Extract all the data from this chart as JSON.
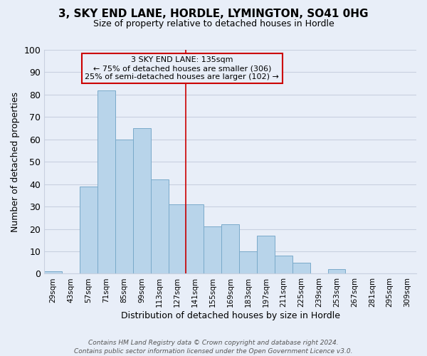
{
  "title": "3, SKY END LANE, HORDLE, LYMINGTON, SO41 0HG",
  "subtitle": "Size of property relative to detached houses in Hordle",
  "xlabel": "Distribution of detached houses by size in Hordle",
  "ylabel": "Number of detached properties",
  "bar_color": "#b8d4ea",
  "bar_edge_color": "#7aaaca",
  "background_color": "#e8eef8",
  "grid_color": "#c8d0e0",
  "bin_labels": [
    "29sqm",
    "43sqm",
    "57sqm",
    "71sqm",
    "85sqm",
    "99sqm",
    "113sqm",
    "127sqm",
    "141sqm",
    "155sqm",
    "169sqm",
    "183sqm",
    "197sqm",
    "211sqm",
    "225sqm",
    "239sqm",
    "253sqm",
    "267sqm",
    "281sqm",
    "295sqm",
    "309sqm"
  ],
  "bar_heights": [
    1,
    0,
    39,
    82,
    60,
    65,
    42,
    31,
    31,
    21,
    22,
    10,
    17,
    8,
    5,
    0,
    2,
    0,
    0,
    0,
    0
  ],
  "ylim": [
    0,
    100
  ],
  "yticks": [
    0,
    10,
    20,
    30,
    40,
    50,
    60,
    70,
    80,
    90,
    100
  ],
  "vline_x": 8.0,
  "vline_color": "#cc0000",
  "annotation_line1": "3 SKY END LANE: 135sqm",
  "annotation_line2": "← 75% of detached houses are smaller (306)",
  "annotation_line3": "25% of semi-detached houses are larger (102) →",
  "annotation_box_edge": "#cc0000",
  "footer_line1": "Contains HM Land Registry data © Crown copyright and database right 2024.",
  "footer_line2": "Contains public sector information licensed under the Open Government Licence v3.0.",
  "title_fontsize": 11,
  "subtitle_fontsize": 9
}
